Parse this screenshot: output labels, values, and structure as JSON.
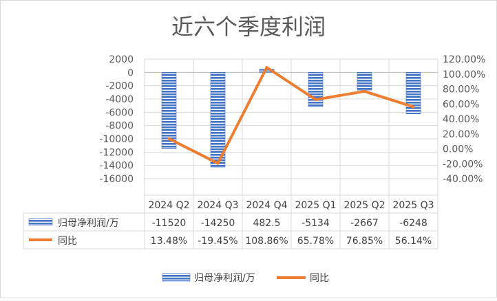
{
  "chart_data": {
    "type": "bar",
    "title": "近六个季度利润",
    "categories": [
      "2024 Q2",
      "2024 Q3",
      "2024 Q4",
      "2025 Q1",
      "2025 Q2",
      "2025 Q3"
    ],
    "series": [
      {
        "name": "归母净利润/万",
        "type": "bar",
        "axis": "left",
        "values": [
          -11520,
          -14250,
          482.5,
          -5134,
          -2667,
          -6248
        ],
        "labels": [
          "-11520",
          "-14250",
          "482.5",
          "-5134",
          "-2667",
          "-6248"
        ],
        "color": "#4472C4"
      },
      {
        "name": "同比",
        "type": "line",
        "axis": "right",
        "values": [
          13.48,
          -19.45,
          108.86,
          65.78,
          76.85,
          56.14
        ],
        "labels": [
          "13.48%",
          "-19.45%",
          "108.86%",
          "65.78%",
          "76.85%",
          "56.14%"
        ],
        "color": "#ED7D31"
      }
    ],
    "y_left": {
      "min": -16000,
      "max": 2000,
      "step": 2000,
      "ticks": [
        "2000",
        "0",
        "-2000",
        "-4000",
        "-6000",
        "-8000",
        "-10000",
        "-12000",
        "-14000",
        "-16000"
      ]
    },
    "y_right": {
      "min": -40,
      "max": 120,
      "step": 20,
      "unit": "%",
      "ticks": [
        "120.00%",
        "100.00%",
        "80.00%",
        "60.00%",
        "40.00%",
        "20.00%",
        "0.00%",
        "-20.00%",
        "-40.00%"
      ]
    },
    "grid": true,
    "data_table": true,
    "legend_position": "bottom"
  }
}
